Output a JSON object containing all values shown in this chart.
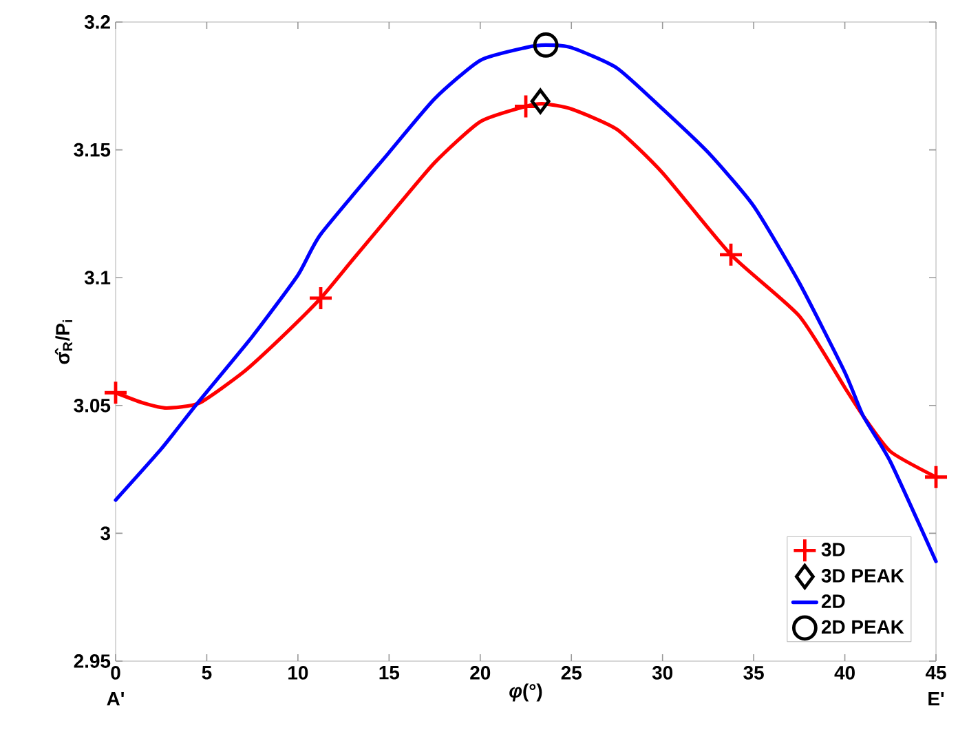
{
  "chart_data": {
    "type": "line",
    "xlabel": "*φ*(°)",
    "ylabel": "σ̂$_{R}$/P$_{i}$",
    "xlim": [
      0,
      45
    ],
    "ylim": [
      2.95,
      3.2
    ],
    "xticks": [
      0,
      5,
      10,
      15,
      20,
      25,
      30,
      35,
      40,
      45
    ],
    "yticks": [
      2.95,
      3,
      3.05,
      3.1,
      3.15,
      3.2
    ],
    "annotations": [
      "A'",
      "E'"
    ],
    "grid": false,
    "legend": "bottom right",
    "series": [
      {
        "color": "#ff0000",
        "marker": "none",
        "line_style": "solid",
        "x": [
          0,
          1.5,
          2.8,
          4.6,
          7,
          9,
          11.25,
          13,
          15,
          17.5,
          20,
          22.5,
          23.5,
          25,
          27.5,
          30,
          33.75,
          37.5,
          40,
          41,
          42.5,
          45
        ],
        "values": [
          3.055,
          3.051,
          3.049,
          3.051,
          3.063,
          3.076,
          3.092,
          3.107,
          3.124,
          3.145,
          3.161,
          3.167,
          3.168,
          3.166,
          3.158,
          3.141,
          3.109,
          3.085,
          3.057,
          3.046,
          3.032,
          3.022
        ]
      },
      {
        "type": "scatter",
        "name": "3D",
        "color": "#ff0000",
        "marker": "cross",
        "x": [
          0,
          11.25,
          22.5,
          33.75,
          45
        ],
        "values": [
          3.055,
          3.092,
          3.167,
          3.109,
          3.022
        ]
      },
      {
        "type": "scatter",
        "name": "3D PEAK",
        "color": "#000000",
        "marker": "diamond",
        "x": [
          23.3
        ],
        "values": [
          3.169
        ]
      },
      {
        "name": "2D",
        "color": "#0000ff",
        "marker": "none",
        "line_style": "solid",
        "x": [
          0,
          2.5,
          4.5,
          7.5,
          10,
          11.25,
          15,
          17.5,
          20,
          22.5,
          23.6,
          25,
          27.5,
          30,
          32.5,
          35,
          37.5,
          40,
          41,
          42.5,
          45
        ],
        "values": [
          3.013,
          3.033,
          3.051,
          3.077,
          3.101,
          3.117,
          3.149,
          3.17,
          3.185,
          3.19,
          3.191,
          3.19,
          3.182,
          3.166,
          3.149,
          3.128,
          3.098,
          3.063,
          3.046,
          3.028,
          2.989
        ]
      },
      {
        "type": "scatter",
        "name": "2D PEAK",
        "color": "#000000",
        "marker": "circle",
        "x": [
          23.6
        ],
        "values": [
          3.191
        ]
      }
    ]
  }
}
